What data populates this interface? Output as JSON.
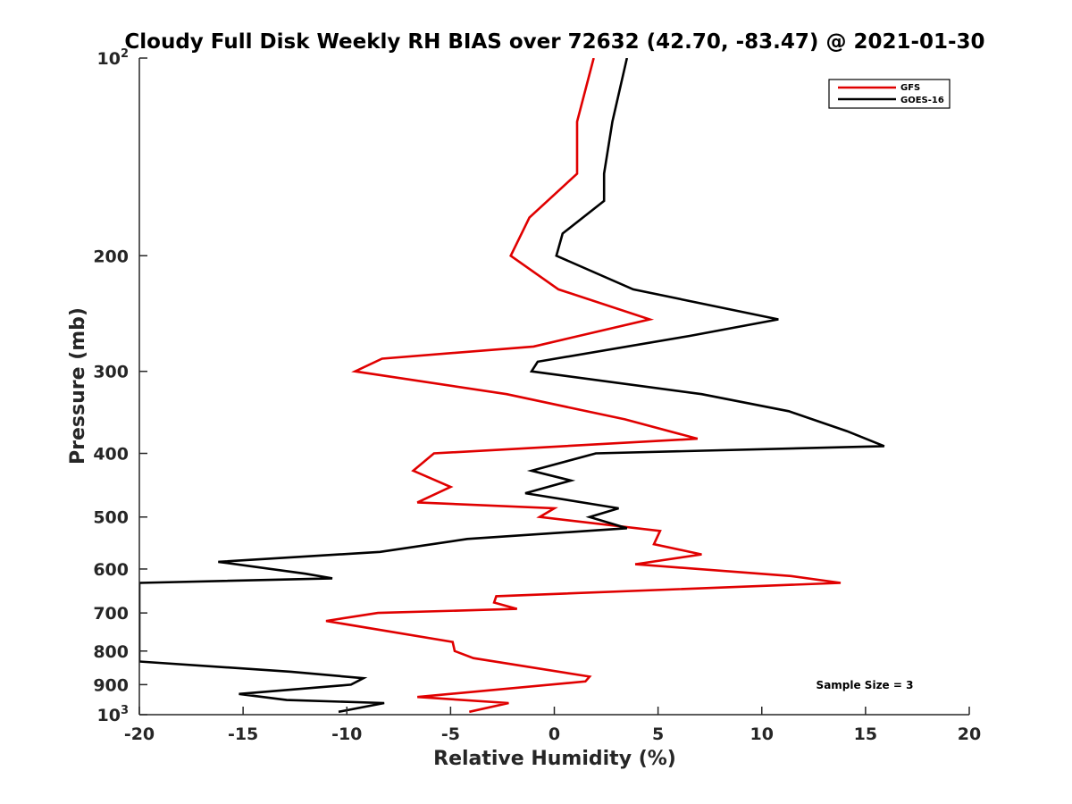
{
  "chart_data": {
    "type": "line",
    "title": "Cloudy Full Disk Weekly RH BIAS over 72632 (42.70, -83.47) @ 2021-01-30",
    "xlabel": "Relative Humidity (%)",
    "ylabel": "Pressure (mb)",
    "xlim": [
      -20,
      20
    ],
    "ylim": [
      100,
      1000
    ],
    "yscale": "log",
    "y_reversed": true,
    "grid": false,
    "legend_position": "top-right",
    "x_ticks": [
      {
        "value": -20,
        "label": "-20"
      },
      {
        "value": -15,
        "label": "-15"
      },
      {
        "value": -10,
        "label": "-10"
      },
      {
        "value": -5,
        "label": "-5"
      },
      {
        "value": 0,
        "label": "0"
      },
      {
        "value": 5,
        "label": "5"
      },
      {
        "value": 10,
        "label": "10"
      },
      {
        "value": 15,
        "label": "15"
      },
      {
        "value": 20,
        "label": "20"
      }
    ],
    "y_ticks": [
      {
        "value": 100,
        "base": "10",
        "exp": "2"
      },
      {
        "value": 200,
        "base": "200",
        "exp": ""
      },
      {
        "value": 300,
        "base": "300",
        "exp": ""
      },
      {
        "value": 400,
        "base": "400",
        "exp": ""
      },
      {
        "value": 500,
        "base": "500",
        "exp": ""
      },
      {
        "value": 600,
        "base": "600",
        "exp": ""
      },
      {
        "value": 700,
        "base": "700",
        "exp": ""
      },
      {
        "value": 800,
        "base": "800",
        "exp": ""
      },
      {
        "value": 900,
        "base": "900",
        "exp": ""
      },
      {
        "value": 1000,
        "base": "10",
        "exp": "3"
      }
    ],
    "series": [
      {
        "name": "GFS",
        "color": "#e00000",
        "points": [
          [
            1.9,
            100
          ],
          [
            1.1,
            125
          ],
          [
            1.1,
            150
          ],
          [
            -1.2,
            175
          ],
          [
            -2.1,
            200
          ],
          [
            0.2,
            225
          ],
          [
            4.6,
            250
          ],
          [
            -1.0,
            275
          ],
          [
            -8.3,
            287
          ],
          [
            -9.6,
            300
          ],
          [
            -2.3,
            325
          ],
          [
            3.4,
            355
          ],
          [
            6.9,
            380
          ],
          [
            -5.8,
            400
          ],
          [
            -6.8,
            425
          ],
          [
            -5.0,
            450
          ],
          [
            -6.6,
            475
          ],
          [
            0.0,
            485
          ],
          [
            -0.7,
            500
          ],
          [
            5.1,
            525
          ],
          [
            4.8,
            550
          ],
          [
            7.1,
            570
          ],
          [
            3.9,
            590
          ],
          [
            11.4,
            615
          ],
          [
            13.8,
            630
          ],
          [
            -2.8,
            660
          ],
          [
            -2.9,
            675
          ],
          [
            -1.8,
            690
          ],
          [
            -8.5,
            700
          ],
          [
            -11.0,
            720
          ],
          [
            -4.9,
            775
          ],
          [
            -4.8,
            800
          ],
          [
            -3.9,
            820
          ],
          [
            1.7,
            875
          ],
          [
            1.5,
            890
          ],
          [
            -6.6,
            940
          ],
          [
            -2.2,
            960
          ],
          [
            -4.1,
            990
          ]
        ]
      },
      {
        "name": "GOES-16",
        "color": "#000000",
        "points": [
          [
            3.5,
            100
          ],
          [
            2.8,
            125
          ],
          [
            2.4,
            150
          ],
          [
            2.4,
            165
          ],
          [
            0.4,
            185
          ],
          [
            0.1,
            200
          ],
          [
            3.8,
            225
          ],
          [
            10.8,
            250
          ],
          [
            6.5,
            265
          ],
          [
            -0.8,
            290
          ],
          [
            -1.1,
            300
          ],
          [
            7.1,
            325
          ],
          [
            11.3,
            345
          ],
          [
            14.1,
            370
          ],
          [
            15.9,
            390
          ],
          [
            2.0,
            400
          ],
          [
            -1.1,
            425
          ],
          [
            0.8,
            440
          ],
          [
            -1.4,
            460
          ],
          [
            3.1,
            485
          ],
          [
            1.7,
            500
          ],
          [
            3.5,
            520
          ],
          [
            -4.2,
            540
          ],
          [
            -8.4,
            565
          ],
          [
            -16.2,
            585
          ],
          [
            -12.0,
            610
          ],
          [
            -10.7,
            620
          ],
          [
            -20.0,
            630
          ],
          [
            -20.0,
            830
          ],
          [
            -12.7,
            860
          ],
          [
            -9.2,
            880
          ],
          [
            -9.8,
            900
          ],
          [
            -15.2,
            930
          ],
          [
            -12.9,
            950
          ],
          [
            -8.2,
            960
          ],
          [
            -10.4,
            990
          ]
        ]
      }
    ],
    "annotation": "Sample Size = 3"
  }
}
